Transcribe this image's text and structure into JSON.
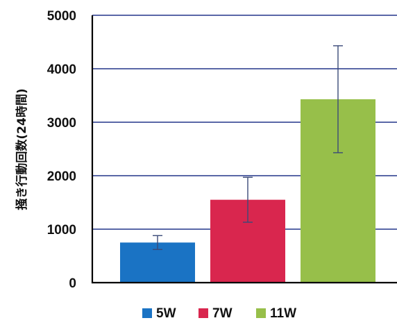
{
  "chart_data": {
    "type": "bar",
    "categories": [
      "5W",
      "7W",
      "11W"
    ],
    "series": [
      {
        "values": [
          750,
          1550,
          3430
        ],
        "error": [
          130,
          420,
          1000
        ],
        "colors": [
          "#1a73c4",
          "#d9264e",
          "#97bf4a"
        ]
      }
    ],
    "ylabel": "掻き行動回数(24時間)",
    "xlabel": "",
    "title": "",
    "ylim": [
      0,
      5000
    ],
    "yticks": [
      0,
      1000,
      2000,
      3000,
      4000,
      5000
    ],
    "grid": true,
    "legend": {
      "position": "bottom",
      "items": [
        {
          "label": "5W",
          "color": "#1a73c4"
        },
        {
          "label": "7W",
          "color": "#d9264e"
        },
        {
          "label": "11W",
          "color": "#97bf4a"
        }
      ]
    },
    "colors": {
      "grid": "#22358a",
      "axis": "#000000",
      "errorbar": "#3a4a78"
    }
  }
}
